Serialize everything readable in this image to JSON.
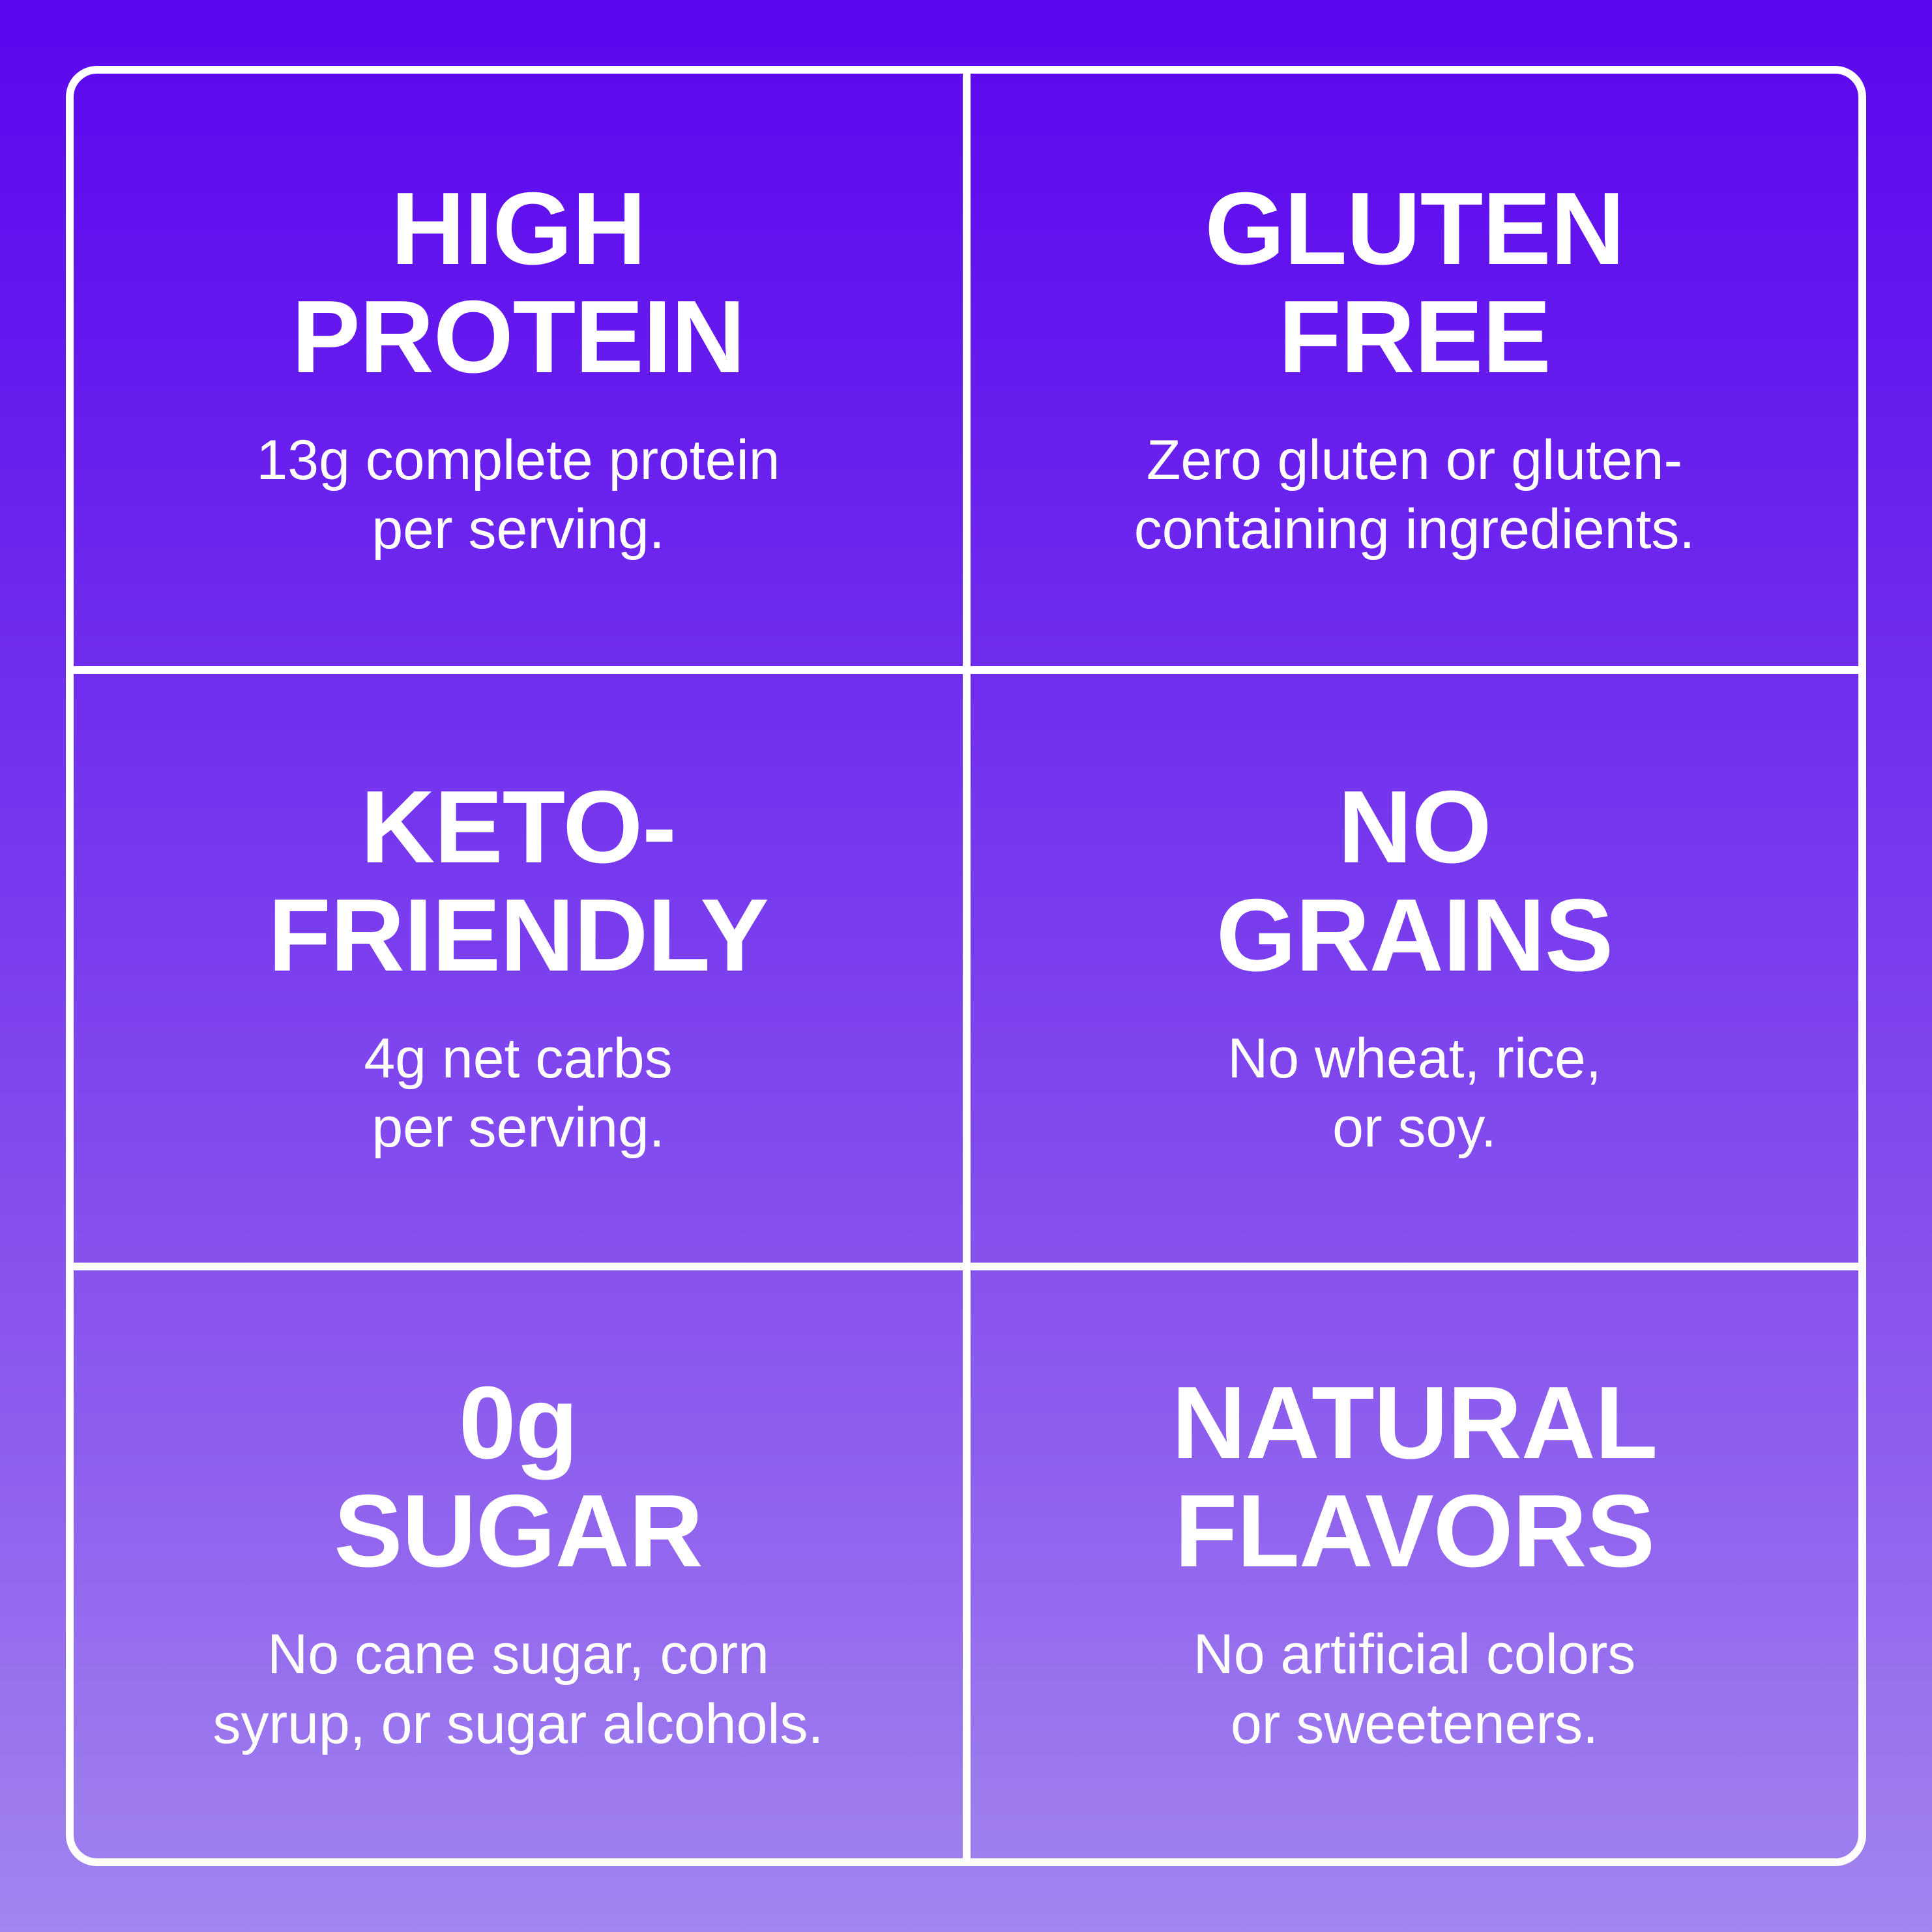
{
  "colors": {
    "background_top": "#5b06ee",
    "background_middle": "#7b3fee",
    "background_bottom": "#a285ee",
    "grid_line": "#ffffff",
    "text": "#ffffff"
  },
  "cells": [
    {
      "title": "HIGH\nPROTEIN",
      "body": "13g complete protein\nper serving."
    },
    {
      "title": "GLUTEN\nFREE",
      "body": "Zero gluten or gluten-\ncontaining ingredients."
    },
    {
      "title": "KETO-\nFRIENDLY",
      "body": "4g net carbs\nper serving."
    },
    {
      "title": "NO\nGRAINS",
      "body": "No wheat, rice,\nor soy."
    },
    {
      "title": "0g\nSUGAR",
      "body": "No cane sugar, corn\nsyrup, or sugar alcohols."
    },
    {
      "title": "NATURAL\nFLAVORS",
      "body": "No artificial colors\nor sweeteners."
    }
  ]
}
